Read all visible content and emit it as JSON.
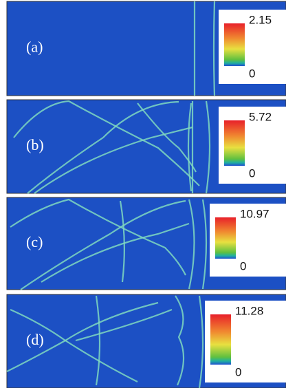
{
  "panels": [
    {
      "label": "(a)",
      "colorbar_max": 2.15,
      "colorbar_min": 0
    },
    {
      "label": "(b)",
      "colorbar_max": 5.72,
      "colorbar_min": 0
    },
    {
      "label": "(c)",
      "colorbar_max": 10.97,
      "colorbar_min": 0
    },
    {
      "label": "(d)",
      "colorbar_max": 11.28,
      "colorbar_min": 0
    }
  ]
}
